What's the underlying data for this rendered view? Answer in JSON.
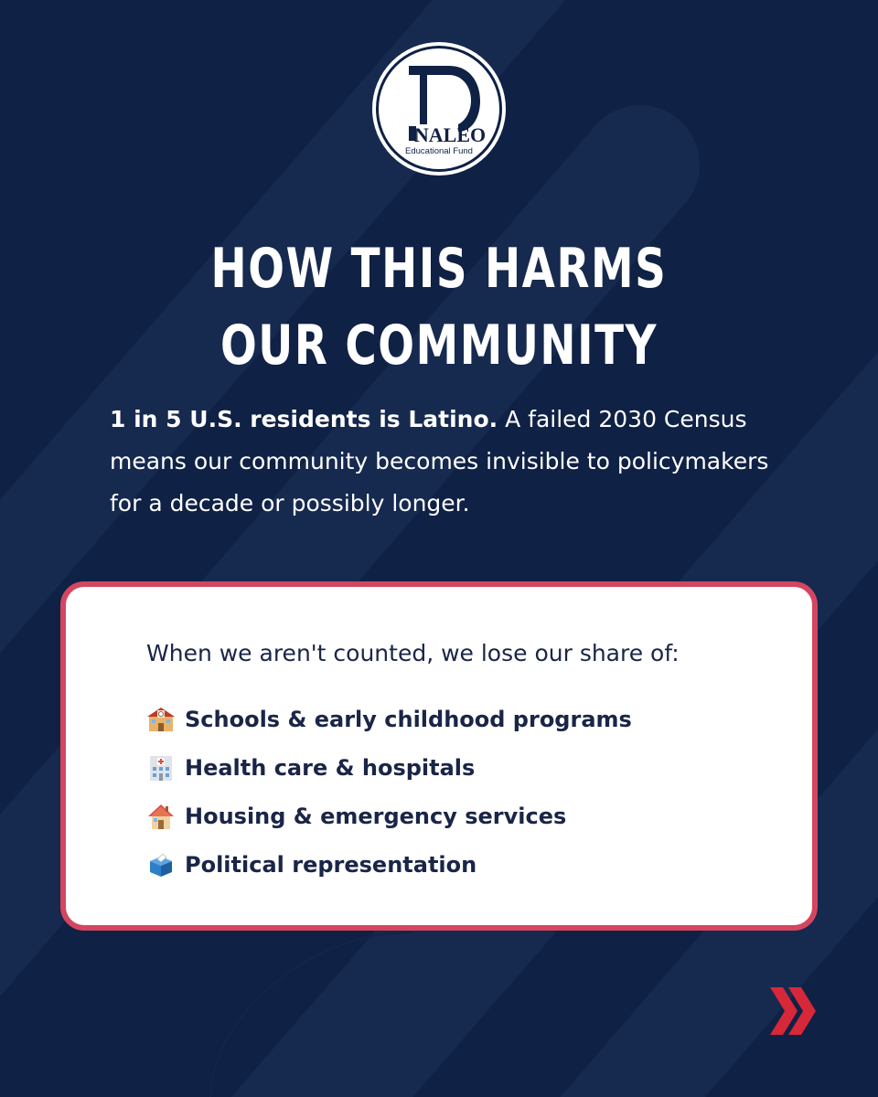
{
  "logo": {
    "letter": "D",
    "name": "NALEO",
    "subtitle": "Educational Fund"
  },
  "headline": {
    "line1": "HOW THIS HARMS",
    "line2": "OUR COMMUNITY"
  },
  "intro": {
    "bold": "1 in 5 U.S. residents is Latino.",
    "rest": " A failed 2030 Census means our community becomes invisible to policymakers for a decade or possibly longer."
  },
  "card": {
    "lead": "When we aren't counted, we lose our share of:",
    "items": [
      {
        "icon": "school-icon",
        "label": "Schools & early childhood programs"
      },
      {
        "icon": "hospital-icon",
        "label": "Health care & hospitals"
      },
      {
        "icon": "house-icon",
        "label": "Housing & emergency services"
      },
      {
        "icon": "ballot-box-icon",
        "label": "Political representation"
      }
    ]
  },
  "colors": {
    "background": "#0f2144",
    "card_border": "#d44660",
    "arrow": "#d62839"
  },
  "next_icon": "double-chevron-right-icon"
}
